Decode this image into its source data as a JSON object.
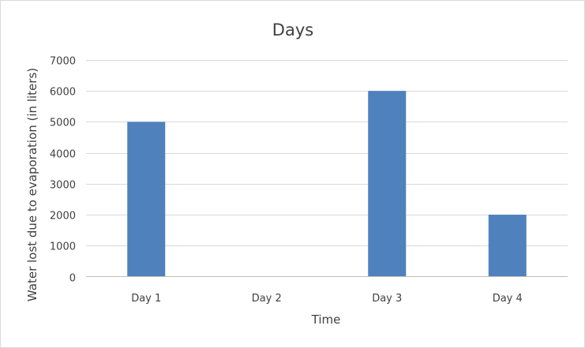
{
  "chart_data": {
    "type": "bar",
    "title": "Days",
    "xlabel": "Time",
    "ylabel": "Water lost due to evaporation (in liters)",
    "categories": [
      "Day 1",
      "Day 2",
      "Day 3",
      "Day 4"
    ],
    "values": [
      5000,
      0,
      6000,
      2000
    ],
    "ylim": [
      0,
      7000
    ],
    "yticks": [
      0,
      1000,
      2000,
      3000,
      4000,
      5000,
      6000,
      7000
    ],
    "grid": true,
    "legend": "none",
    "bar_color": "#4f81bd"
  }
}
